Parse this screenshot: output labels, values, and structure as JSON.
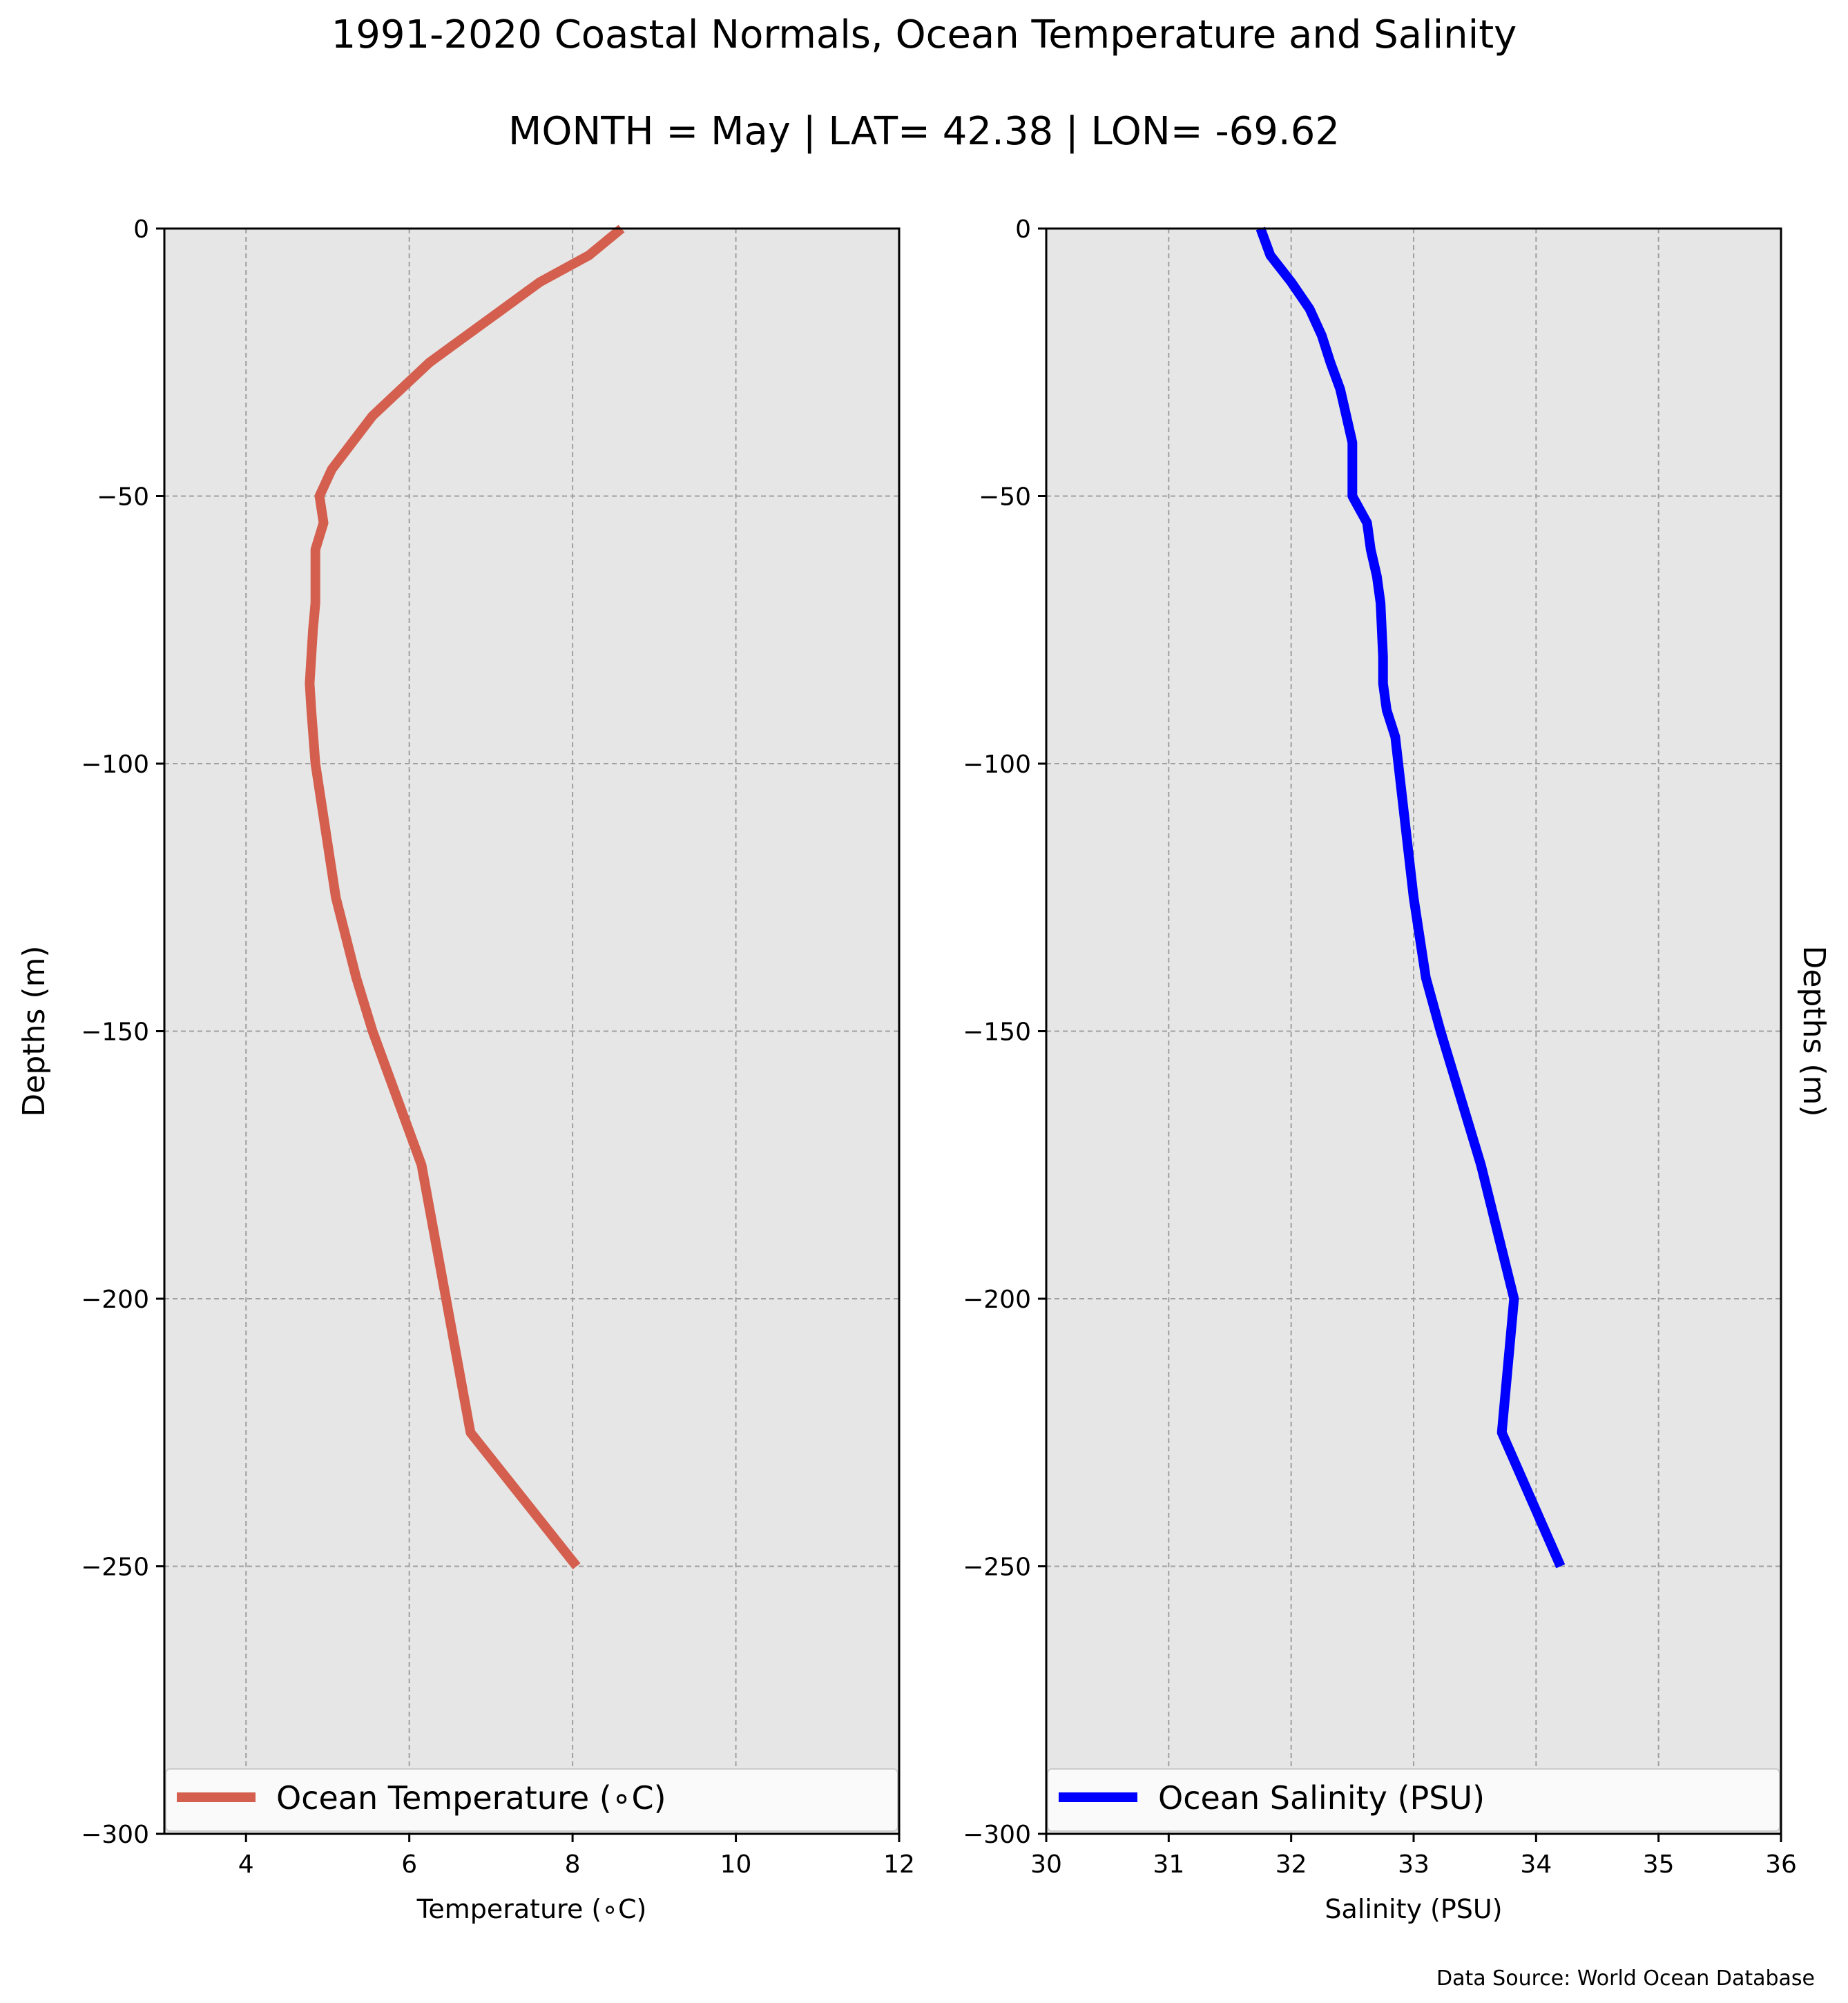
{
  "figure": {
    "title": "1991-2020 Coastal Normals, Ocean Temperature and Salinity",
    "subtitle": "MONTH = May | LAT= 42.38 | LON= -69.62",
    "source": "Data Source: World Ocean Database"
  },
  "colors": {
    "plot_background": "#e6e6e6",
    "grid": "#a0a0a0",
    "temperature_line": "#d45f4e",
    "salinity_line": "#0000ff"
  },
  "chart_data": [
    {
      "type": "line",
      "xlabel": "Temperature ($^\\circ$C)",
      "xlabel_display": "Temperature (∘C)",
      "ylabel": "Depths (m)",
      "xlim": [
        3,
        12
      ],
      "ylim": [
        -300,
        0
      ],
      "xticks": [
        4,
        6,
        8,
        10,
        12
      ],
      "yticks": [
        0,
        -50,
        -100,
        -150,
        -200,
        -250,
        -300
      ],
      "grid": true,
      "legend_position": "bottom",
      "series": [
        {
          "name": "Ocean Temperature (∘C)",
          "color": "#d45f4e",
          "x": [
            8.6,
            8.2,
            7.6,
            7.15,
            6.7,
            6.25,
            5.9,
            5.55,
            5.3,
            5.05,
            4.9,
            4.95,
            4.85,
            4.85,
            4.85,
            4.82,
            4.8,
            4.78,
            4.8,
            4.85,
            5.1,
            5.35,
            5.55,
            6.15,
            6.45,
            6.75,
            8.05
          ],
          "y": [
            0,
            -5,
            -10,
            -15,
            -20,
            -25,
            -30,
            -35,
            -40,
            -45,
            -50,
            -55,
            -60,
            -65,
            -70,
            -75,
            -80,
            -85,
            -90,
            -100,
            -125,
            -140,
            -150,
            -175,
            -200,
            -225,
            -250
          ]
        }
      ]
    },
    {
      "type": "line",
      "xlabel": "Salinity (PSU)",
      "ylabel": "Depths (m)",
      "xlim": [
        30,
        36
      ],
      "ylim": [
        -300,
        0
      ],
      "xticks": [
        30,
        31,
        32,
        33,
        34,
        35,
        36
      ],
      "yticks": [
        0,
        -50,
        -100,
        -150,
        -200,
        -250,
        -300
      ],
      "grid": true,
      "legend_position": "bottom",
      "series": [
        {
          "name": "Ocean Salinity (PSU)",
          "color": "#0000ff",
          "x": [
            31.75,
            31.83,
            32.0,
            32.15,
            32.25,
            32.32,
            32.4,
            32.45,
            32.5,
            32.5,
            32.5,
            32.62,
            32.65,
            32.7,
            32.73,
            32.74,
            32.75,
            32.75,
            32.78,
            32.85,
            33.0,
            33.1,
            33.22,
            33.55,
            33.82,
            33.72,
            34.2
          ],
          "y": [
            0,
            -5,
            -10,
            -15,
            -20,
            -25,
            -30,
            -35,
            -40,
            -45,
            -50,
            -55,
            -60,
            -65,
            -70,
            -75,
            -80,
            -85,
            -90,
            -95,
            -125,
            -140,
            -150,
            -175,
            -200,
            -225,
            -250
          ]
        }
      ]
    }
  ]
}
